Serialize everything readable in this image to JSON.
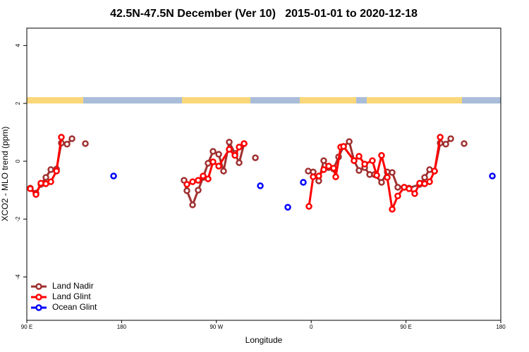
{
  "chart_data": {
    "type": "line",
    "title": "42.5N-47.5N December (Ver 10)   2015-01-01 to 2020-12-18",
    "x_label": "Longitude",
    "y_label": "XCO2 - MLO trend (ppm)",
    "xlim": [
      90,
      540
    ],
    "xticks": [
      {
        "value": 90,
        "label": "90 E"
      },
      {
        "value": 180,
        "label": "180"
      },
      {
        "value": 270,
        "label": "90 W"
      },
      {
        "value": 360,
        "label": "0"
      },
      {
        "value": 450,
        "label": "90 E"
      },
      {
        "value": 540,
        "label": "180"
      }
    ],
    "ylim": [
      -5.5,
      4.6
    ],
    "yticks": [
      -4,
      -2,
      0,
      2,
      4
    ],
    "legend_position": "bottom-left",
    "series": [
      {
        "name": "Land Nadir",
        "color": "#a03030",
        "x": [
          93.3,
          98.7,
          103.4,
          108.1,
          112.8,
          118.2,
          122.8,
          128.2,
          132.9,
          null,
          145.6,
          null,
          239.3,
          242.0,
          247.4,
          252.7,
          257.4,
          262.1,
          266.8,
          272.2,
          276.8,
          282.2,
          287.6,
          291.6,
          296.3,
          null,
          307.0,
          null,
          357.2,
          361.9,
          367.2,
          371.9,
          376.6,
          381.3,
          386.0,
          390.7,
          396.1,
          400.7,
          405.4,
          410.8,
          415.5,
          420.1,
          426.8,
          432.2,
          436.9,
          442.2,
          448.3,
          452.9,
          463.0,
          467.7,
          472.4,
          477.1,
          482.5,
          487.8,
          492.5,
          null,
          505.2
        ],
        "values": [
          -0.93,
          -1.1,
          -0.8,
          -0.56,
          -0.29,
          -0.27,
          0.63,
          0.59,
          0.78,
          null,
          0.61,
          null,
          -0.66,
          -1.02,
          -1.51,
          -1.0,
          -0.56,
          -0.07,
          0.34,
          0.24,
          -0.34,
          0.66,
          0.27,
          -0.05,
          0.61,
          null,
          0.12,
          null,
          -0.34,
          -0.37,
          -0.68,
          0.02,
          -0.22,
          -0.27,
          0.15,
          0.51,
          0.68,
          0.02,
          -0.32,
          -0.22,
          -0.46,
          -0.46,
          -0.73,
          -0.37,
          -0.39,
          -0.9,
          -0.9,
          -0.93,
          -0.8,
          -0.56,
          -0.29,
          -0.34,
          0.63,
          0.59,
          0.78,
          null,
          0.61
        ]
      },
      {
        "name": "Land Glint",
        "color": "#ff0000",
        "x": [
          93.3,
          98.7,
          103.4,
          108.1,
          112.8,
          118.2,
          122.8,
          null,
          242.0,
          247.4,
          252.7,
          257.4,
          262.1,
          266.8,
          272.2,
          282.2,
          287.6,
          291.6,
          296.3,
          null,
          357.9,
          361.9,
          367.2,
          371.9,
          376.6,
          381.3,
          383.3,
          388.0,
          390.7,
          400.7,
          405.4,
          410.8,
          418.1,
          422.2,
          426.8,
          432.2,
          436.9,
          442.2,
          448.3,
          452.9,
          458.3,
          463.0,
          467.7,
          472.4,
          477.1,
          482.5
        ],
        "values": [
          -0.95,
          -1.15,
          -0.76,
          -0.78,
          -0.71,
          -0.34,
          0.83,
          null,
          -0.8,
          -0.71,
          -0.66,
          -0.51,
          -0.61,
          -0.02,
          -0.17,
          0.41,
          0.2,
          0.49,
          0.61,
          null,
          -1.56,
          -0.54,
          -0.51,
          -0.29,
          -0.17,
          -0.24,
          -0.54,
          0.49,
          0.51,
          0.02,
          0.17,
          -0.1,
          0.02,
          -0.49,
          0.2,
          -0.56,
          -1.66,
          -1.2,
          -0.9,
          -0.95,
          -1.12,
          -0.76,
          -0.78,
          -0.71,
          -0.34,
          0.83
        ]
      },
      {
        "name": "Ocean Glint",
        "color": "#0000ff",
        "x": [
          172.4,
          null,
          311.7,
          null,
          337.8,
          null,
          352.5,
          null,
          532.0
        ],
        "values": [
          -0.51,
          null,
          -0.85,
          null,
          -1.59,
          null,
          -0.73,
          null,
          -0.51
        ]
      }
    ]
  }
}
